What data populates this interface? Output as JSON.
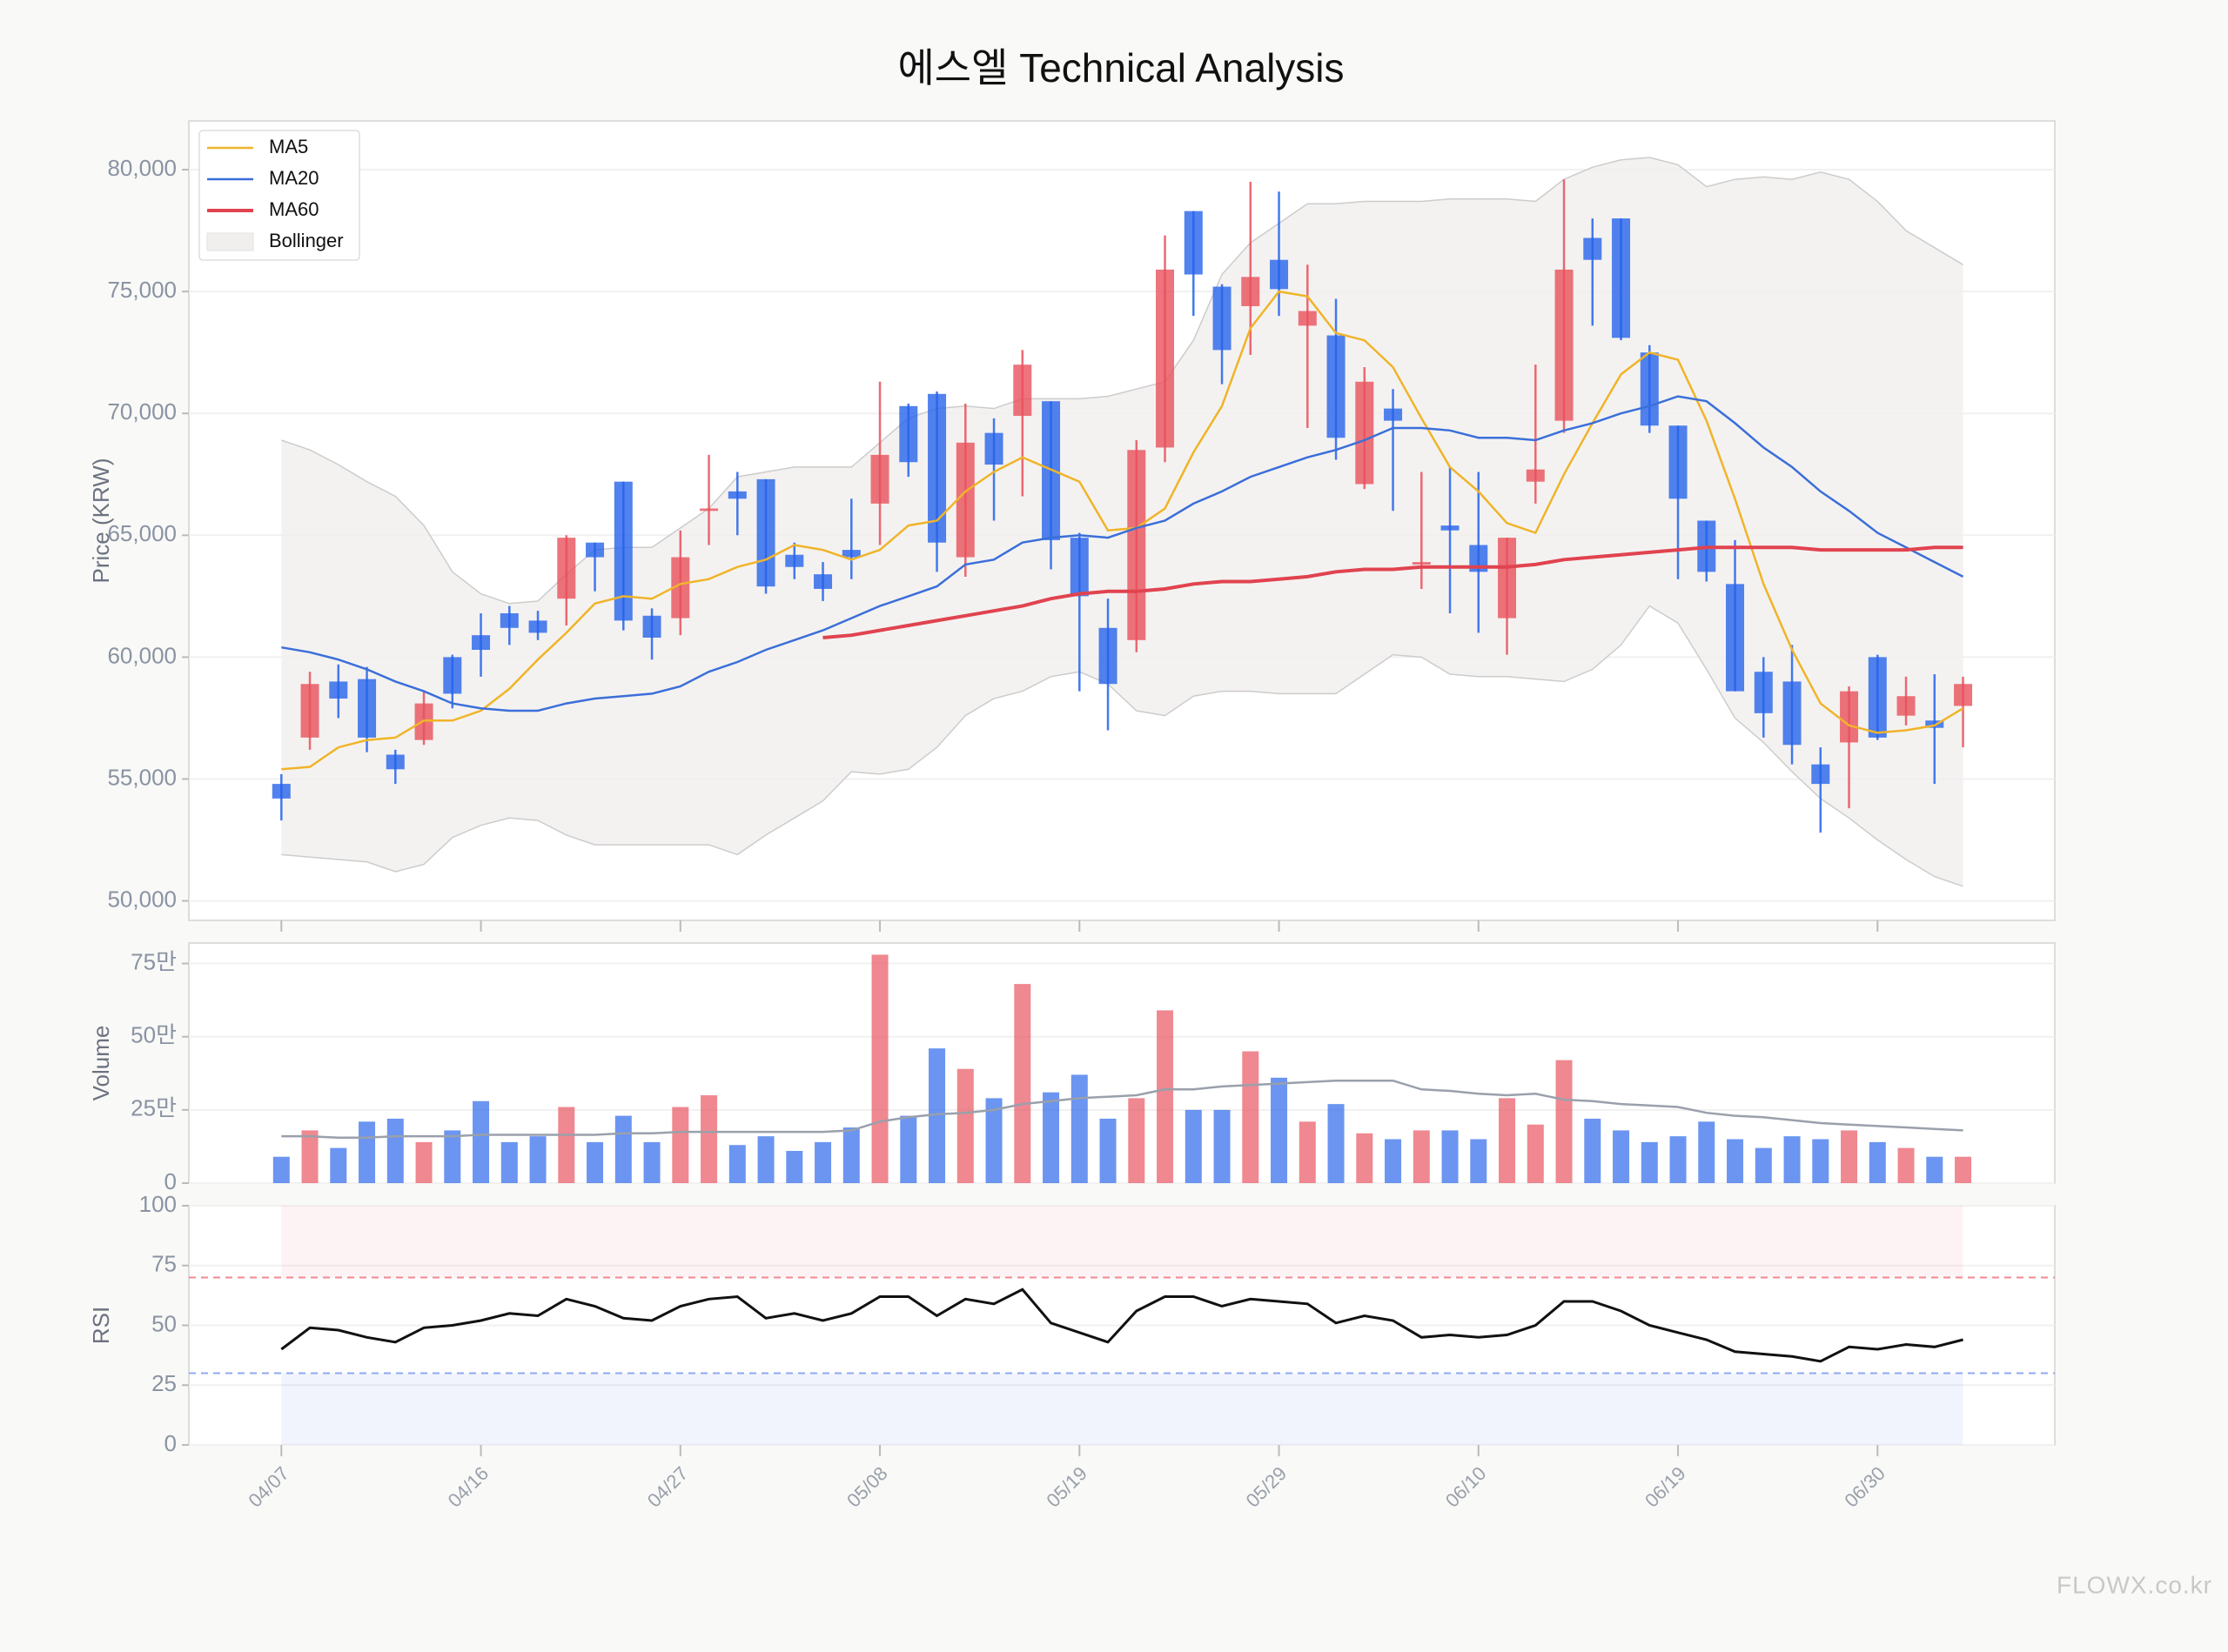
{
  "chart_data": [
    {
      "type": "candlestick",
      "title": "에스엘 Technical Analysis",
      "ylabel": "Price (KRW)",
      "categories": [
        "04/07",
        null,
        null,
        null,
        null,
        null,
        null,
        "04/16",
        null,
        null,
        null,
        null,
        null,
        null,
        "04/27",
        null,
        null,
        null,
        null,
        null,
        null,
        "05/08",
        null,
        null,
        null,
        null,
        null,
        null,
        "05/19",
        null,
        null,
        null,
        null,
        null,
        null,
        "05/29",
        null,
        null,
        null,
        null,
        null,
        null,
        "06/10",
        null,
        null,
        null,
        null,
        null,
        null,
        "06/19",
        null,
        null,
        null,
        null,
        null,
        null,
        "06/30",
        null,
        null,
        null
      ],
      "open": [
        54800,
        56700,
        59000,
        59100,
        56000,
        56600,
        60000,
        60900,
        61800,
        61500,
        62400,
        64700,
        67200,
        61700,
        61600,
        66000,
        66800,
        67300,
        64200,
        63400,
        64400,
        66300,
        70300,
        70800,
        64100,
        69200,
        69900,
        70500,
        64900,
        61200,
        60700,
        68600,
        78300,
        75200,
        74400,
        76300,
        73600,
        73200,
        67100,
        70200,
        63800,
        65400,
        64600,
        61600,
        67200,
        69700,
        77200,
        78000,
        72500,
        69500,
        65600,
        63000,
        59400,
        59000,
        55600,
        56500,
        60000,
        57600,
        57400,
        58000
      ],
      "high": [
        55200,
        59400,
        59700,
        59600,
        56200,
        58600,
        60100,
        61800,
        62100,
        61900,
        65000,
        64700,
        67200,
        62000,
        65200,
        68300,
        67600,
        67300,
        64700,
        63900,
        66500,
        71300,
        70400,
        70900,
        70400,
        69800,
        72600,
        70500,
        65100,
        62400,
        68900,
        77300,
        78300,
        75300,
        79500,
        79100,
        76100,
        74700,
        71900,
        71000,
        67600,
        67800,
        67600,
        64900,
        72000,
        79600,
        78000,
        78000,
        72800,
        69500,
        65600,
        64800,
        60000,
        60500,
        56300,
        58800,
        60100,
        59200,
        59300,
        59200
      ],
      "low": [
        53300,
        56200,
        57500,
        56100,
        54800,
        56400,
        57900,
        59200,
        60500,
        60700,
        61300,
        62700,
        61100,
        59900,
        60900,
        64600,
        65000,
        62600,
        63200,
        62300,
        63200,
        64600,
        67400,
        63500,
        63300,
        65600,
        66600,
        63600,
        58600,
        57000,
        60200,
        68000,
        74000,
        71200,
        72400,
        74000,
        69400,
        68100,
        66900,
        66000,
        62800,
        61800,
        61000,
        60100,
        66300,
        69200,
        73600,
        73000,
        69200,
        63200,
        63100,
        58600,
        56700,
        55600,
        52800,
        53800,
        56600,
        57200,
        54800,
        56300
      ],
      "close": [
        54200,
        58900,
        58300,
        56700,
        55400,
        58100,
        58500,
        60300,
        61200,
        61000,
        64900,
        64100,
        61500,
        60800,
        64100,
        66100,
        66500,
        62900,
        63700,
        62800,
        64100,
        68300,
        68000,
        64700,
        68800,
        67900,
        72000,
        64800,
        62500,
        58900,
        68500,
        75900,
        75700,
        72600,
        75600,
        75100,
        74200,
        69000,
        71300,
        69700,
        63900,
        65200,
        63500,
        64900,
        67700,
        75900,
        76300,
        73100,
        69500,
        66500,
        63500,
        58600,
        57700,
        56400,
        54800,
        58600,
        56700,
        58400,
        57100,
        58900
      ],
      "up_color": "#e8505b",
      "down_color": "#2563eb",
      "ylim": [
        49200,
        82000
      ],
      "yticks": [
        {
          "value": 50000,
          "label": "50,000"
        },
        {
          "value": 55000,
          "label": "55,000"
        },
        {
          "value": 60000,
          "label": "60,000"
        },
        {
          "value": 65000,
          "label": "65,000"
        },
        {
          "value": 70000,
          "label": "70,000"
        },
        {
          "value": 75000,
          "label": "75,000"
        },
        {
          "value": 80000,
          "label": "80,000"
        }
      ],
      "grid": true,
      "legend": "upper left",
      "series": [
        {
          "name": "MA5",
          "color": "#f0b429",
          "values": [
            55400,
            55500,
            56300,
            56600,
            56700,
            57400,
            57400,
            57800,
            58700,
            59900,
            61000,
            62200,
            62500,
            62400,
            63000,
            63200,
            63700,
            64000,
            64600,
            64400,
            64000,
            64400,
            65400,
            65600,
            66800,
            67600,
            68200,
            67700,
            67200,
            65200,
            65300,
            66100,
            68400,
            70300,
            73500,
            75000,
            74800,
            73300,
            73000,
            71900,
            69800,
            67800,
            66800,
            65500,
            65100,
            67500,
            69600,
            71600,
            72500,
            72200,
            69700,
            66500,
            63000,
            60300,
            58100,
            57200,
            56900,
            57000,
            57200,
            57900
          ]
        },
        {
          "name": "MA20",
          "color": "#3b6fd9",
          "values": [
            60400,
            60200,
            59900,
            59500,
            59000,
            58600,
            58100,
            57900,
            57800,
            57800,
            58100,
            58300,
            58400,
            58500,
            58800,
            59400,
            59800,
            60300,
            60700,
            61100,
            61600,
            62100,
            62500,
            62900,
            63800,
            64000,
            64700,
            64900,
            65000,
            64900,
            65300,
            65600,
            66300,
            66800,
            67400,
            67800,
            68200,
            68500,
            68900,
            69400,
            69400,
            69300,
            69000,
            69000,
            68900,
            69300,
            69600,
            70000,
            70300,
            70700,
            70500,
            69600,
            68600,
            67800,
            66800,
            66000,
            65100,
            64500,
            63900,
            63300
          ]
        },
        {
          "name": "MA60",
          "color": "#e0434f",
          "values": [
            null,
            null,
            null,
            null,
            null,
            null,
            null,
            null,
            null,
            null,
            null,
            null,
            null,
            null,
            null,
            null,
            null,
            null,
            null,
            60800,
            60900,
            61100,
            61300,
            61500,
            61700,
            61900,
            62100,
            62400,
            62600,
            62700,
            62700,
            62800,
            63000,
            63100,
            63100,
            63200,
            63300,
            63500,
            63600,
            63600,
            63700,
            63700,
            63700,
            63700,
            63800,
            64000,
            64100,
            64200,
            64300,
            64400,
            64500,
            64500,
            64500,
            64500,
            64400,
            64400,
            64400,
            64400,
            64500,
            64500
          ]
        }
      ],
      "bollinger": {
        "name": "Bollinger",
        "color": "#f1efed",
        "edge_color": "#cccccc",
        "upper": [
          68900,
          68500,
          67900,
          67200,
          66600,
          65400,
          63500,
          62600,
          62200,
          62300,
          63400,
          64400,
          64500,
          64500,
          65300,
          66100,
          67400,
          67600,
          67800,
          67800,
          67800,
          68800,
          69800,
          70200,
          70300,
          70200,
          70600,
          70600,
          70600,
          70700,
          71000,
          71300,
          73000,
          75700,
          77000,
          77800,
          78600,
          78600,
          78700,
          78700,
          78700,
          78800,
          78800,
          78800,
          78700,
          79600,
          80100,
          80400,
          80500,
          80200,
          79300,
          79600,
          79700,
          79600,
          79900,
          79600,
          78700,
          77500,
          76800,
          76100
        ],
        "lower": [
          51900,
          51800,
          51700,
          51600,
          51200,
          51500,
          52600,
          53100,
          53400,
          53300,
          52700,
          52300,
          52300,
          52300,
          52300,
          52300,
          51900,
          52700,
          53400,
          54100,
          55300,
          55200,
          55400,
          56300,
          57600,
          58300,
          58600,
          59200,
          59400,
          58900,
          57800,
          57600,
          58400,
          58600,
          58600,
          58500,
          58500,
          58500,
          59300,
          60100,
          60000,
          59300,
          59200,
          59200,
          59100,
          59000,
          59500,
          60500,
          62100,
          61400,
          59500,
          57500,
          56500,
          55300,
          54200,
          53400,
          52500,
          51700,
          51000,
          50600
        ]
      }
    },
    {
      "type": "bar",
      "ylabel": "Volume",
      "values": [
        90000,
        180000,
        120000,
        210000,
        220000,
        140000,
        180000,
        280000,
        140000,
        160000,
        260000,
        140000,
        230000,
        140000,
        260000,
        300000,
        130000,
        160000,
        110000,
        140000,
        190000,
        780000,
        230000,
        460000,
        390000,
        290000,
        680000,
        310000,
        370000,
        220000,
        290000,
        590000,
        250000,
        250000,
        450000,
        360000,
        210000,
        270000,
        170000,
        150000,
        180000,
        180000,
        150000,
        290000,
        200000,
        420000,
        220000,
        180000,
        140000,
        160000,
        210000,
        150000,
        120000,
        160000,
        150000,
        180000,
        140000,
        120000,
        90000,
        90000
      ],
      "ylim": [
        0,
        820000
      ],
      "yticks": [
        0,
        {
          "value": 250000,
          "label": "25만"
        },
        {
          "value": 500000,
          "label": "50만"
        },
        {
          "value": 750000,
          "label": "75만"
        }
      ],
      "grid": true,
      "ma": {
        "color": "#9aa0ab",
        "values": [
          160000,
          160000,
          155000,
          155000,
          160000,
          160000,
          160000,
          165000,
          165000,
          165000,
          165000,
          165000,
          170000,
          170000,
          175000,
          175000,
          175000,
          175000,
          175000,
          175000,
          180000,
          210000,
          225000,
          235000,
          240000,
          250000,
          270000,
          280000,
          290000,
          295000,
          300000,
          320000,
          320000,
          330000,
          335000,
          340000,
          345000,
          350000,
          350000,
          350000,
          320000,
          315000,
          305000,
          300000,
          305000,
          285000,
          280000,
          270000,
          265000,
          260000,
          240000,
          230000,
          225000,
          215000,
          205000,
          200000,
          195000,
          190000,
          185000,
          180000
        ]
      }
    },
    {
      "type": "line",
      "ylabel": "RSI",
      "color": "#111111",
      "values": [
        40,
        49,
        48,
        45,
        43,
        49,
        50,
        52,
        55,
        54,
        61,
        58,
        53,
        52,
        58,
        61,
        62,
        53,
        55,
        52,
        55,
        62,
        62,
        54,
        61,
        59,
        65,
        51,
        47,
        43,
        56,
        62,
        62,
        58,
        61,
        60,
        59,
        51,
        54,
        52,
        45,
        46,
        45,
        46,
        50,
        60,
        60,
        56,
        50,
        47,
        44,
        39,
        38,
        37,
        35,
        41,
        40,
        42,
        41,
        44
      ],
      "ylim": [
        0,
        100
      ],
      "yticks": [
        0,
        25,
        50,
        75,
        100
      ],
      "grid": true,
      "overbought": 70,
      "oversold": 30,
      "overbought_color": "#f08a93",
      "oversold_color": "#8fa8f0"
    }
  ],
  "watermark": "FLOWX.co.kr"
}
